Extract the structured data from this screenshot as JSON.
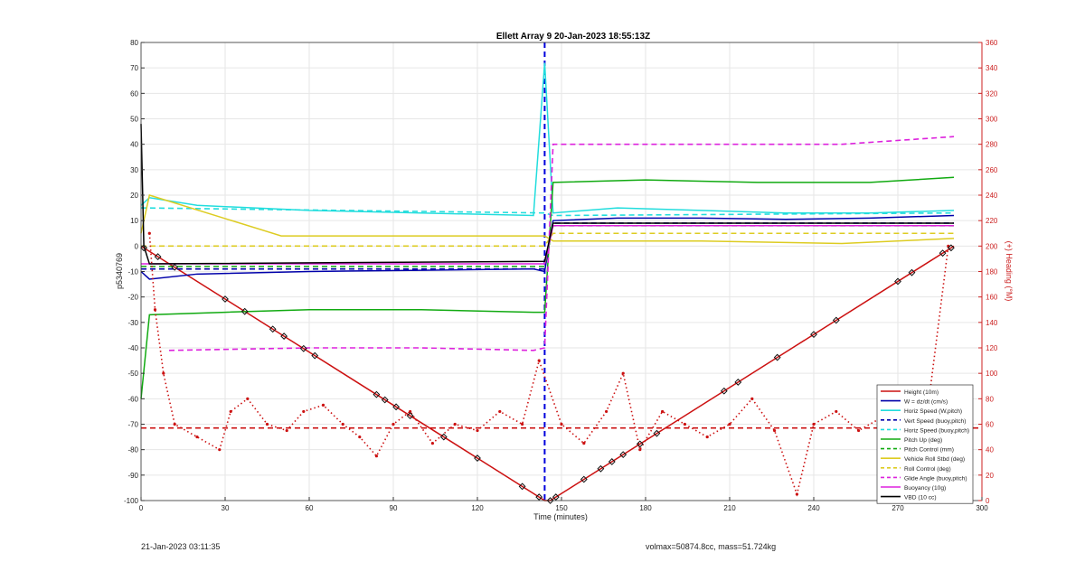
{
  "chart_data": {
    "type": "line",
    "title": "Ellett Array 9 20-Jan-2023 18:55:13Z",
    "xlabel": "Time (minutes)",
    "ylabel": "p5340769",
    "y2label": "(+) Heading (°M)",
    "xlim": [
      0,
      300
    ],
    "ylim": [
      -100,
      80
    ],
    "y2lim": [
      0,
      360
    ],
    "xticks": [
      0,
      30,
      60,
      90,
      120,
      150,
      180,
      210,
      240,
      270,
      300
    ],
    "yticks": [
      -100,
      -90,
      -80,
      -70,
      -60,
      -50,
      -40,
      -30,
      -20,
      -10,
      0,
      10,
      20,
      30,
      40,
      50,
      60,
      70,
      80
    ],
    "y2ticks": [
      0,
      20,
      40,
      60,
      80,
      100,
      120,
      140,
      160,
      180,
      200,
      220,
      240,
      260,
      280,
      300,
      320,
      340,
      360
    ],
    "grid": true,
    "legend_position": "bottom-right",
    "apogee_minute": 144,
    "colors": {
      "height": "#cc1111",
      "w": "#0000aa",
      "horiz_speed": "#22dddd",
      "vert_speed": "#0000aa",
      "pitch": "#11aa11",
      "roll": "#ddcc22",
      "glide": "#dd22dd",
      "buoyancy": "#dd22dd",
      "vbd": "#000000",
      "heading": "#cc1111",
      "apogee_line": "#0000dd",
      "right_axis": "#cc2222"
    },
    "series": [
      {
        "name": "Height (10m)",
        "color": "#cc1111",
        "style": "solid",
        "axis": "left",
        "x": [
          0,
          144,
          146,
          290
        ],
        "y": [
          0,
          -100,
          -100,
          0
        ]
      },
      {
        "name": "W = dz/dt (cm/s)",
        "color": "#0000aa",
        "style": "solid",
        "axis": "left",
        "x": [
          0,
          3,
          20,
          60,
          100,
          140,
          144,
          147,
          170,
          200,
          230,
          260,
          290
        ],
        "y": [
          -10,
          -13,
          -11,
          -10,
          -9.5,
          -9,
          -10,
          10,
          11,
          11,
          10.5,
          11,
          12
        ]
      },
      {
        "name": "Horiz Speed (W,pitch)",
        "color": "#22dddd",
        "style": "solid",
        "axis": "left",
        "x": [
          0,
          3,
          20,
          60,
          100,
          140,
          144,
          147,
          170,
          200,
          230,
          260,
          290
        ],
        "y": [
          16,
          19,
          16,
          14,
          13,
          12,
          72,
          13,
          15,
          14,
          13,
          13,
          14
        ]
      },
      {
        "name": "Vert Speed (buoy,pitch)",
        "color": "#0000aa",
        "style": "dashed",
        "axis": "left",
        "x": [
          0,
          144,
          147,
          290
        ],
        "y": [
          -9,
          -9,
          9,
          9
        ]
      },
      {
        "name": "Horiz Speed (buoy,pitch)",
        "color": "#22dddd",
        "style": "dashed",
        "axis": "left",
        "x": [
          0,
          144,
          147,
          290
        ],
        "y": [
          15,
          13,
          12,
          13
        ]
      },
      {
        "name": "Pitch Up (deg)",
        "color": "#11aa11",
        "style": "solid",
        "axis": "left",
        "x": [
          0,
          3,
          30,
          60,
          100,
          140,
          144,
          147,
          180,
          220,
          260,
          290
        ],
        "y": [
          -60,
          -27,
          -26,
          -25,
          -25,
          -26,
          -26,
          25,
          26,
          25,
          25,
          27
        ]
      },
      {
        "name": "Pitch Control (mm)",
        "color": "#11aa11",
        "style": "dashed",
        "axis": "left",
        "x": [
          0,
          144,
          147,
          290
        ],
        "y": [
          -8,
          -8,
          8,
          8
        ]
      },
      {
        "name": "Vehicle Roll Stbd (deg)",
        "color": "#ddcc22",
        "style": "solid",
        "axis": "left",
        "x": [
          0,
          3,
          50,
          100,
          144,
          147,
          200,
          250,
          290
        ],
        "y": [
          5,
          20,
          4,
          4,
          4,
          2,
          2,
          1,
          3
        ]
      },
      {
        "name": "Roll Control (deg)",
        "color": "#ddcc22",
        "style": "dashed",
        "axis": "left",
        "x": [
          0,
          144,
          147,
          290
        ],
        "y": [
          0,
          0,
          5,
          5
        ]
      },
      {
        "name": "Glide Angle (buoy,pitch)",
        "color": "#dd22dd",
        "style": "dashed",
        "axis": "left",
        "x": [
          10,
          60,
          100,
          140,
          144,
          147,
          200,
          250,
          290
        ],
        "y": [
          -41,
          -40,
          -40,
          -41,
          -40,
          40,
          40,
          40,
          43
        ]
      },
      {
        "name": "Buoyancy (10g)",
        "color": "#dd22dd",
        "style": "solid",
        "axis": "left",
        "x": [
          0,
          144,
          147,
          290
        ],
        "y": [
          -7,
          -7,
          8,
          8
        ]
      },
      {
        "name": "VBD (10 cc)",
        "color": "#000000",
        "style": "solid",
        "axis": "left",
        "x": [
          0,
          1,
          3,
          144,
          147,
          290
        ],
        "y": [
          48,
          0,
          -7,
          -6,
          9,
          9
        ]
      },
      {
        "name": "Heading",
        "color": "#cc1111",
        "style": "dots",
        "axis": "right",
        "x": [
          3,
          5,
          8,
          12,
          20,
          28,
          32,
          38,
          45,
          52,
          58,
          65,
          72,
          78,
          84,
          90,
          96,
          104,
          112,
          120,
          128,
          136,
          142,
          150,
          158,
          166,
          172,
          178,
          186,
          194,
          202,
          210,
          218,
          226,
          234,
          240,
          248,
          256,
          264,
          272,
          280,
          288
        ],
        "y": [
          210,
          150,
          100,
          60,
          50,
          40,
          70,
          80,
          60,
          55,
          70,
          75,
          60,
          50,
          35,
          60,
          70,
          45,
          60,
          55,
          70,
          60,
          110,
          60,
          45,
          70,
          100,
          40,
          70,
          60,
          50,
          60,
          80,
          55,
          5,
          60,
          70,
          55,
          65,
          50,
          60,
          200
        ]
      },
      {
        "name": "Mean Heading",
        "color": "#cc1111",
        "style": "dashed",
        "axis": "right",
        "x": [
          0,
          300
        ],
        "y": [
          57,
          57
        ]
      }
    ],
    "markers": {
      "x": [
        1,
        6,
        12,
        30,
        37,
        47,
        51,
        58,
        62,
        84,
        87,
        91,
        96,
        108,
        120,
        136,
        142,
        146,
        148,
        158,
        164,
        168,
        172,
        178,
        184,
        208,
        213,
        227,
        240,
        248,
        270,
        275,
        286,
        289
      ]
    },
    "legend": [
      "Height (10m)",
      "W = dz/dt (cm/s)",
      "Horiz Speed (W,pitch)",
      "Vert Speed (buoy,pitch)",
      "Horiz Speed (buoy,pitch)",
      "Pitch Up (deg)",
      "Pitch Control (mm)",
      "Vehicle Roll Stbd (deg)",
      "Roll Control (deg)",
      "Glide Angle (buoy,pitch)",
      "Buoyancy (10g)",
      "VBD (10 cc)"
    ]
  },
  "footer": {
    "timestamp": "21-Jan-2023 03:11:35",
    "stats": "volmax=50874.8cc, mass=51.724kg"
  }
}
